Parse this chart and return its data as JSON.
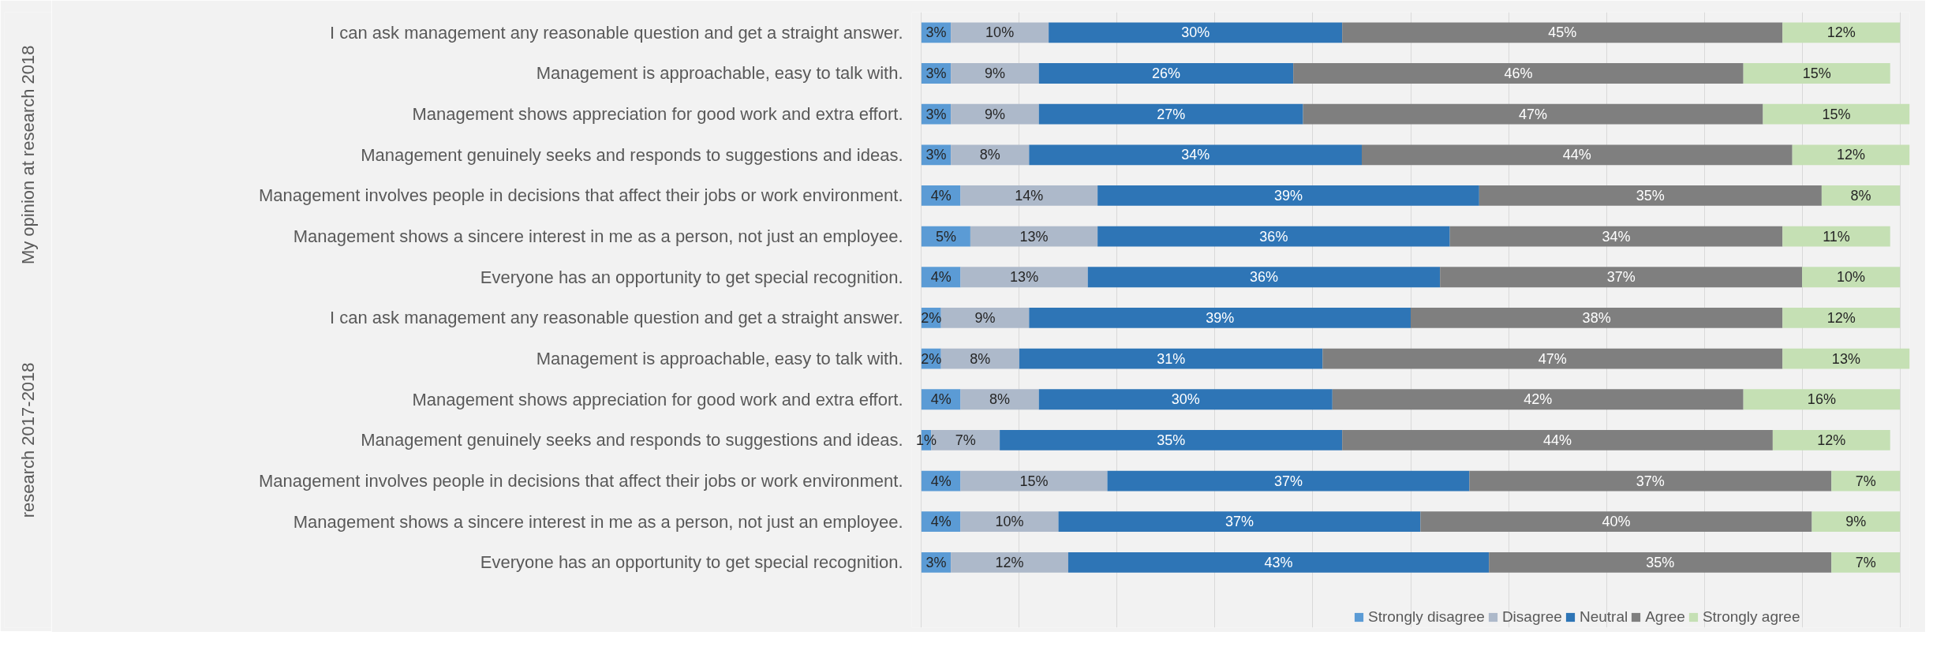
{
  "chart_data": {
    "type": "bar",
    "orientation": "horizontal",
    "stacked": true,
    "categories": [
      "I can ask management any reasonable question and get a straight answer.",
      "Management is approachable, easy to talk with.",
      "Management shows appreciation for good work and extra effort.",
      "Management genuinely seeks and responds to suggestions and ideas.",
      "Management involves people in decisions that affect their jobs or work environment.",
      "Management shows a sincere interest in me as a person, not just an employee.",
      "Everyone has an opportunity to get special recognition.",
      "I can ask management any reasonable question and get a straight answer.",
      "Management is approachable, easy to talk with.",
      "Management shows appreciation for good work and extra effort.",
      "Management genuinely seeks and responds to suggestions and ideas.",
      "Management involves people in decisions that affect their jobs or work environment.",
      "Management shows a sincere interest in me as a person, not just an employee.",
      "Everyone has an opportunity to get special recognition."
    ],
    "series": [
      {
        "name": "Strongly disagree",
        "color": "#5b9bd5",
        "values": [
          3,
          3,
          3,
          3,
          4,
          5,
          4,
          2,
          2,
          4,
          1,
          4,
          4,
          3
        ],
        "value_labels": [
          "3%",
          "3%",
          "3%",
          "3%",
          "4%",
          "5%",
          "4%",
          "2%",
          "2%",
          "4%",
          "1%",
          "4%",
          "4%",
          "3%"
        ]
      },
      {
        "name": "Disagree",
        "color": "#adb9ca",
        "values": [
          10,
          9,
          9,
          8,
          14,
          13,
          13,
          9,
          8,
          8,
          7,
          15,
          10,
          12
        ],
        "value_labels": [
          "10%",
          "9%",
          "9%",
          "8%",
          "14%",
          "13%",
          "13%",
          "9%",
          "8%",
          "8%",
          "7%",
          "15%",
          "10%",
          "12%"
        ]
      },
      {
        "name": "Neutral",
        "color": "#2e75b6",
        "values": [
          30,
          26,
          27,
          34,
          39,
          36,
          36,
          39,
          31,
          30,
          35,
          37,
          37,
          43
        ],
        "value_labels": [
          "30%",
          "26%",
          "27%",
          "34%",
          "39%",
          "36%",
          "36%",
          "39%",
          "31%",
          "30%",
          "35%",
          "37%",
          "37%",
          "43%"
        ]
      },
      {
        "name": "Agree",
        "color": "#7f7f7f",
        "values": [
          45,
          46,
          47,
          44,
          35,
          34,
          37,
          38,
          47,
          42,
          44,
          37,
          40,
          35
        ],
        "value_labels": [
          "45%",
          "46%",
          "47%",
          "44%",
          "35%",
          "34%",
          "37%",
          "38%",
          "47%",
          "42%",
          "44%",
          "37%",
          "40%",
          "35%"
        ]
      },
      {
        "name": "Strongly agree",
        "color": "#c5e0b4",
        "values": [
          12,
          15,
          15,
          12,
          8,
          11,
          10,
          12,
          13,
          16,
          12,
          7,
          9,
          7
        ],
        "value_labels": [
          "12%",
          "15%",
          "15%",
          "12%",
          "8%",
          "11%",
          "10%",
          "12%",
          "13%",
          "16%",
          "12%",
          "7%",
          "9%",
          "7%"
        ]
      }
    ],
    "annotations": [
      "My opinion at research 2018",
      "research 2017-2018"
    ],
    "xlim": [
      -1,
      101
    ],
    "xticks": [
      {
        "value": 0,
        "label": null
      },
      {
        "value": 10,
        "label": null
      },
      {
        "value": 20,
        "label": null
      },
      {
        "value": 30,
        "label": null
      },
      {
        "value": 40,
        "label": null
      },
      {
        "value": 50,
        "label": null
      },
      {
        "value": 60,
        "label": null
      },
      {
        "value": 70,
        "label": null
      },
      {
        "value": 80,
        "label": null
      },
      {
        "value": 90,
        "label": null
      },
      {
        "value": 100,
        "label": null
      }
    ],
    "grid": "x",
    "legend": "bottom",
    "tick_labels": "y"
  }
}
